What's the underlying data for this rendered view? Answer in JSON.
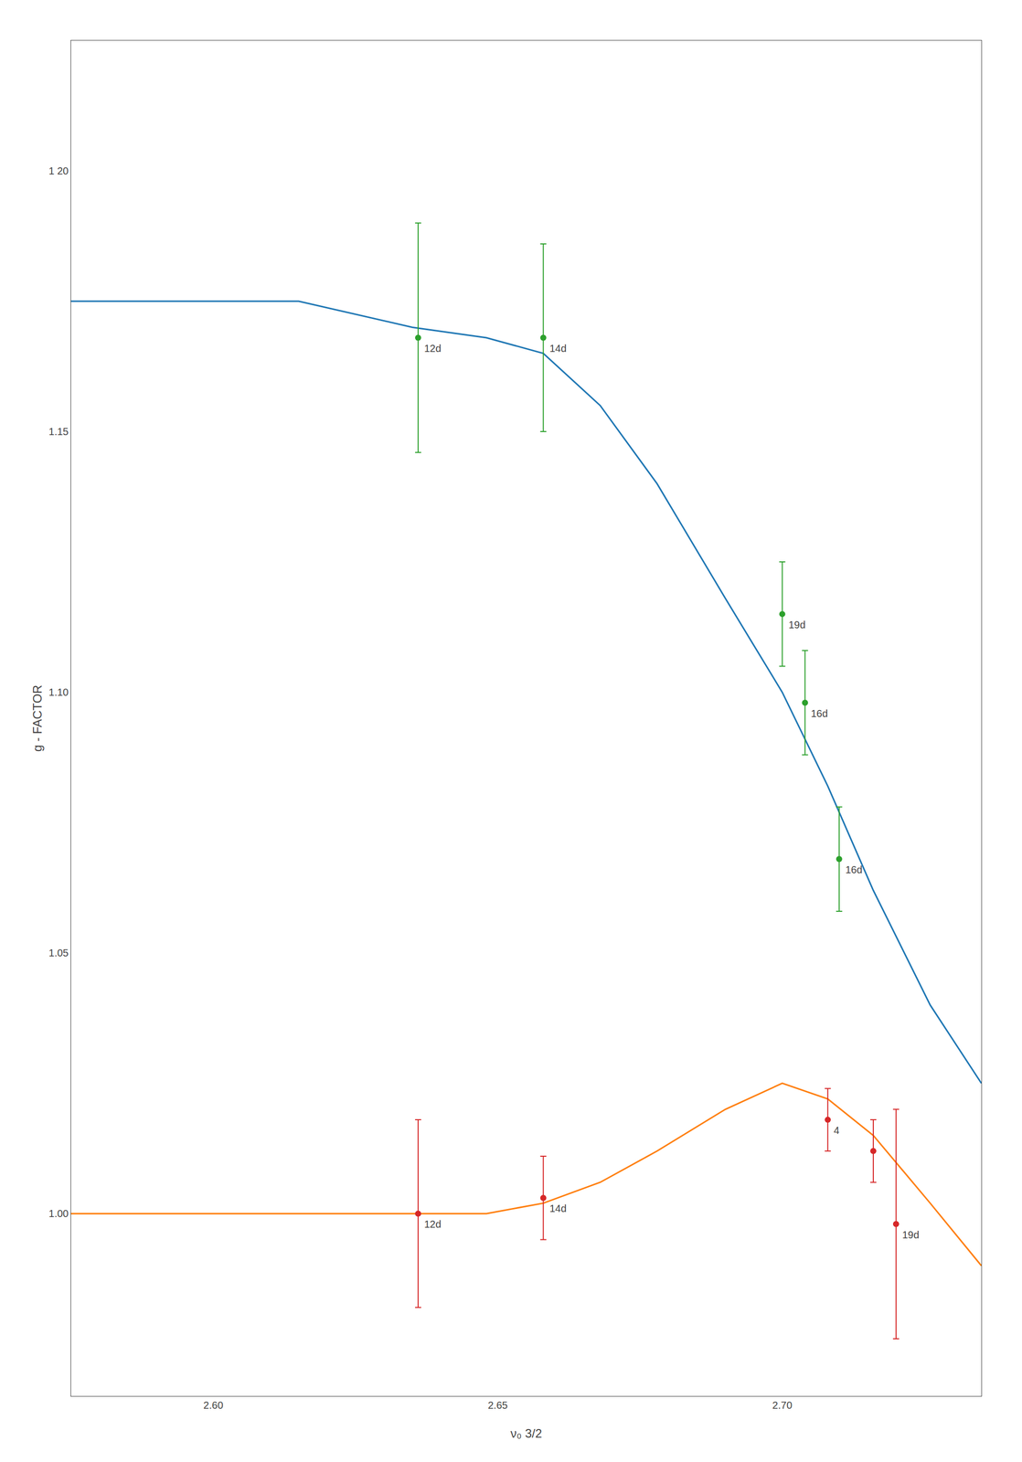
{
  "chart_data": {
    "type": "scatter",
    "xlabel": "ν₀ 3/2",
    "ylabel": "g - FACTOR",
    "xlim": [
      2.575,
      2.735
    ],
    "ylim": [
      0.965,
      1.225
    ],
    "xticks": [
      {
        "value": 2.6,
        "label": "2.60"
      },
      2.65,
      {
        "value": 2.7,
        "label": "2.70"
      }
    ],
    "yticks": [
      {
        "value": 1.0,
        "label": "1.00"
      },
      1.05,
      {
        "value": 1.1,
        "label": "1.10"
      },
      1.15,
      {
        "value": 1.2,
        "label": "1 20"
      }
    ],
    "grid": false,
    "series": [
      {
        "type": "line",
        "line_style": "solid",
        "x": [
          2.575,
          2.595,
          2.615,
          2.635,
          2.648,
          2.658,
          2.668,
          2.678,
          2.69,
          2.7,
          2.708,
          2.716,
          2.726,
          2.735
        ],
        "values": [
          1.175,
          1.175,
          1.175,
          1.17,
          1.168,
          1.165,
          1.155,
          1.14,
          1.118,
          1.1,
          1.082,
          1.062,
          1.04,
          1.025
        ]
      },
      {
        "type": "line",
        "line_style": "solid",
        "x": [
          2.575,
          2.595,
          2.615,
          2.635,
          2.648,
          2.658,
          2.668,
          2.678,
          2.69,
          2.7,
          2.708,
          2.716,
          2.726,
          2.735
        ],
        "values": [
          1.0,
          1.0,
          1.0,
          1.0,
          1.0,
          1.002,
          1.006,
          1.012,
          1.02,
          1.025,
          1.022,
          1.015,
          1.002,
          0.99
        ]
      },
      {
        "type": "scatter",
        "marker": "circle",
        "x": [
          2.636,
          2.658,
          2.7,
          2.704,
          2.71
        ],
        "values": [
          1.168,
          1.168,
          1.115,
          1.098,
          1.068
        ],
        "yerr": [
          0.022,
          0.018,
          0.01,
          0.01,
          0.01
        ]
      },
      {
        "type": "scatter",
        "marker": "circle",
        "x": [
          2.636,
          2.658,
          2.708,
          2.716,
          2.72
        ],
        "values": [
          1.0,
          1.003,
          1.018,
          1.012,
          0.998
        ],
        "yerr": [
          0.018,
          0.008,
          0.006,
          0.006,
          0.022
        ]
      }
    ],
    "annotations": [
      {
        "text": "12d",
        "x": 2.636,
        "y": 1.168
      },
      {
        "text": "14d",
        "x": 2.658,
        "y": 1.168
      },
      {
        "text": "19d",
        "x": 2.7,
        "y": 1.115
      },
      {
        "text": "16d",
        "x": 2.704,
        "y": 1.098
      },
      {
        "text": "16d",
        "x": 2.71,
        "y": 1.068
      },
      {
        "text": "12d",
        "x": 2.636,
        "y": 1.0
      },
      {
        "text": "14d",
        "x": 2.658,
        "y": 1.003
      },
      {
        "text": "4",
        "x": 2.708,
        "y": 1.018
      },
      {
        "text": "19d",
        "x": 2.72,
        "y": 0.998
      }
    ]
  }
}
